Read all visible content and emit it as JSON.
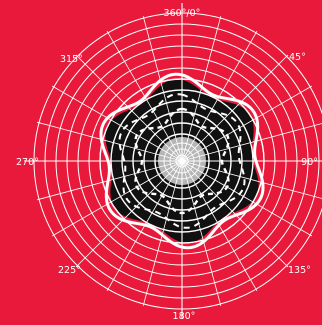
{
  "diagram": {
    "labels": {
      "top": "360°/0°",
      "top_right": "45°",
      "right": "90°",
      "bottom_right": "135°",
      "bottom": "180°",
      "bottom_left": "225°",
      "left": "270°",
      "top_left": "315°"
    },
    "colors": {
      "background": "#e8193a",
      "rings": "#ffffff",
      "inner_fill": "#111111",
      "center_fill": "#b5b5b5",
      "outline": "#ffffff"
    }
  }
}
